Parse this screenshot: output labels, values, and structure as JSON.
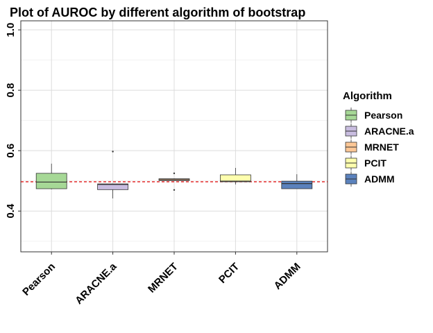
{
  "chart_data": {
    "type": "boxplot",
    "title": "Plot of AUROC by different algorithm of bootstrap",
    "xlabel": "",
    "ylabel": "",
    "ylim": [
      0.265,
      1.03
    ],
    "yticks": [
      0.4,
      0.6,
      0.8,
      1.0
    ],
    "ytick_labels": [
      "0.4",
      "0.6",
      "0.8",
      "1.0"
    ],
    "grid": true,
    "reference_line": {
      "y": 0.497,
      "color": "#dd0000",
      "style": "dashed"
    },
    "legend": {
      "title": "Algorithm",
      "position": "right"
    },
    "categories": [
      "Pearson",
      "ARACNE.a",
      "MRNET",
      "PCIT",
      "ADMM"
    ],
    "series": [
      {
        "name": "Pearson",
        "color": "#a6d896",
        "whisker_low": 0.472,
        "q1": 0.474,
        "median": 0.496,
        "q3": 0.525,
        "whisker_high": 0.557,
        "outliers": []
      },
      {
        "name": "ARACNE.a",
        "color": "#c9bde0",
        "whisker_low": 0.442,
        "q1": 0.471,
        "median": 0.488,
        "q3": 0.49,
        "whisker_high": 0.49,
        "outliers": [
          0.597
        ]
      },
      {
        "name": "MRNET",
        "color": "#fdc796",
        "whisker_low": 0.501,
        "q1": 0.501,
        "median": 0.504,
        "q3": 0.507,
        "whisker_high": 0.508,
        "outliers": [
          0.47,
          0.525
        ]
      },
      {
        "name": "PCIT",
        "color": "#feffad",
        "whisker_low": 0.488,
        "q1": 0.497,
        "median": 0.499,
        "q3": 0.52,
        "whisker_high": 0.543,
        "outliers": []
      },
      {
        "name": "ADMM",
        "color": "#5b82bd",
        "whisker_low": 0.474,
        "q1": 0.474,
        "median": 0.491,
        "q3": 0.499,
        "whisker_high": 0.522,
        "outliers": []
      }
    ]
  }
}
